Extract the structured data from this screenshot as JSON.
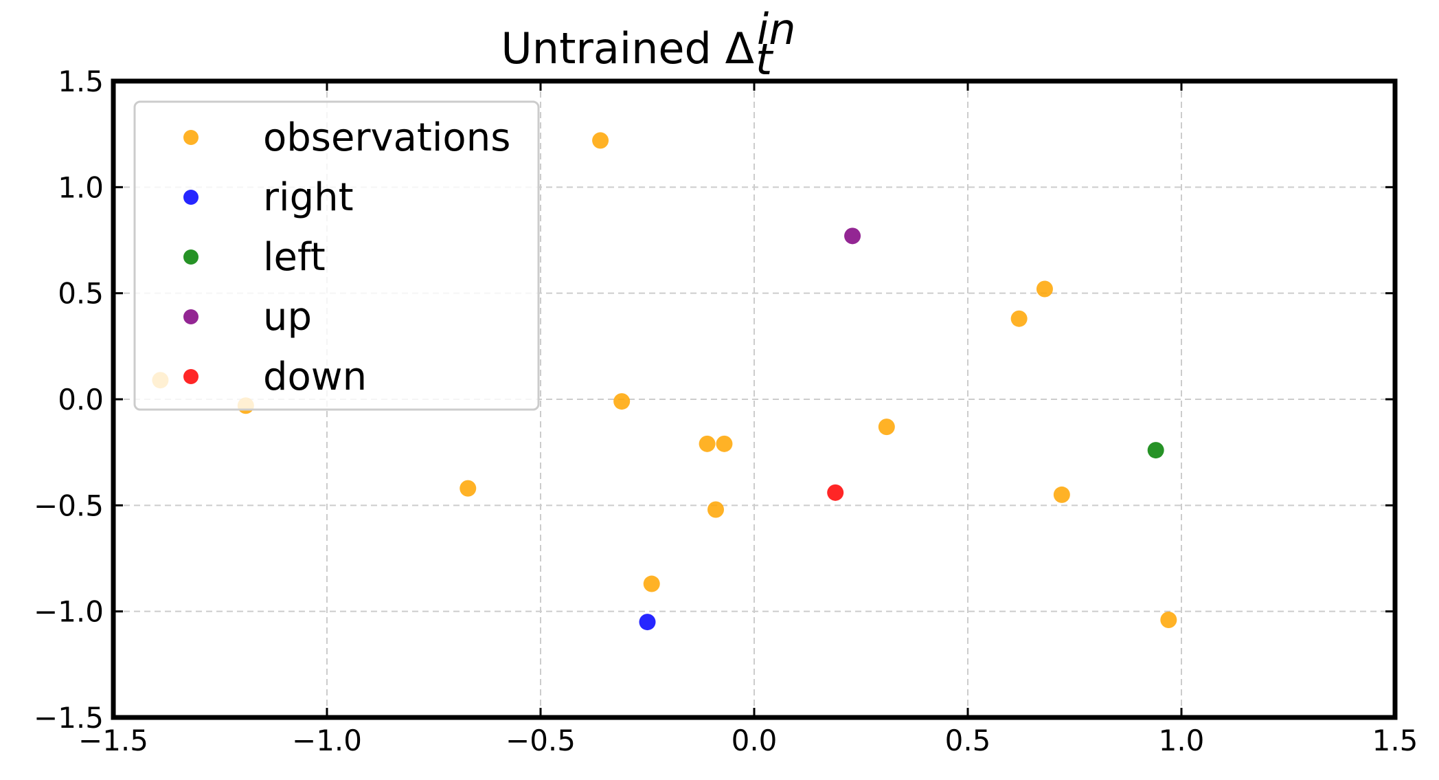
{
  "chart_data": {
    "type": "scatter",
    "title": "Untrained Δ",
    "title_subscript": "t",
    "title_superscript": "in",
    "xlabel": "",
    "ylabel": "",
    "xlim": [
      -1.5,
      1.5
    ],
    "ylim": [
      -1.5,
      1.5
    ],
    "grid": true,
    "grid_style": "dashed",
    "legend_position": "top-left",
    "x_ticks": [
      -1.5,
      -1.0,
      -0.5,
      0.0,
      0.5,
      1.0,
      1.5
    ],
    "y_ticks": [
      -1.5,
      -1.0,
      -0.5,
      0.0,
      0.5,
      1.0,
      1.5
    ],
    "x_tick_labels": [
      "−1.5",
      "−1.0",
      "−0.5",
      "0.0",
      "0.5",
      "1.0",
      "1.5"
    ],
    "y_tick_labels": [
      "−1.5",
      "−1.0",
      "−0.5",
      "0.0",
      "0.5",
      "1.0",
      "1.5"
    ],
    "series": [
      {
        "name": "observations",
        "color": "#FFA500",
        "points": [
          {
            "x": -0.36,
            "y": 1.22
          },
          {
            "x": 0.68,
            "y": 0.52
          },
          {
            "x": 0.62,
            "y": 0.38
          },
          {
            "x": -1.39,
            "y": 0.09
          },
          {
            "x": -1.19,
            "y": -0.03
          },
          {
            "x": -0.31,
            "y": -0.01
          },
          {
            "x": 0.31,
            "y": -0.13
          },
          {
            "x": -0.11,
            "y": -0.21
          },
          {
            "x": -0.07,
            "y": -0.21
          },
          {
            "x": -0.67,
            "y": -0.42
          },
          {
            "x": 0.72,
            "y": -0.45
          },
          {
            "x": -0.09,
            "y": -0.52
          },
          {
            "x": -0.24,
            "y": -0.87
          },
          {
            "x": 0.97,
            "y": -1.04
          }
        ]
      },
      {
        "name": "right",
        "color": "#0000FF",
        "points": [
          {
            "x": -0.25,
            "y": -1.05
          }
        ]
      },
      {
        "name": "left",
        "color": "#007F00",
        "points": [
          {
            "x": 0.94,
            "y": -0.24
          }
        ]
      },
      {
        "name": "up",
        "color": "#800080",
        "points": [
          {
            "x": 0.23,
            "y": 0.77
          }
        ]
      },
      {
        "name": "down",
        "color": "#FF0000",
        "points": [
          {
            "x": 0.19,
            "y": -0.44
          }
        ]
      }
    ]
  }
}
